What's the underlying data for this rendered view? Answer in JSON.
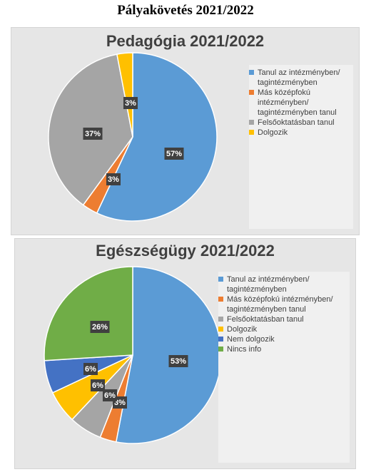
{
  "page_title": "Pályakövetés 2021/2022",
  "chart_data": [
    {
      "type": "pie",
      "title": "Pedagógia 2021/2022",
      "categories": [
        "Tanul az intézményben/ tagintézményben",
        "Más középfokú intézményben/ tagintézményben tanul",
        "Felsőoktatásban tanul",
        "Dolgozik"
      ],
      "values": [
        57,
        3,
        37,
        3
      ],
      "data_labels": [
        "57%",
        "3%",
        "37%",
        "3%"
      ],
      "colors": [
        "#5b9bd5",
        "#ed7d31",
        "#a5a5a5",
        "#ffc000"
      ],
      "legend_labels": [
        [
          "Tanul az intézményben/",
          "tagintézményben"
        ],
        [
          "Más középfokú",
          "intézményben/",
          "tagintézményben tanul"
        ],
        [
          "Felsőoktatásban tanul"
        ],
        [
          "Dolgozik"
        ]
      ],
      "legend_position": "right"
    },
    {
      "type": "pie",
      "title": "Egészségügy 2021/2022",
      "categories": [
        "Tanul az intézményben/ tagintézményben",
        "Más középfokú intézményben/ tagintézményben tanul",
        "Felsőoktatásban tanul",
        "Dolgozik",
        "Nem dolgozik",
        "Nincs info"
      ],
      "values": [
        53,
        3,
        6,
        6,
        6,
        26
      ],
      "data_labels": [
        "53%",
        "3%",
        "6%",
        "6%",
        "6%",
        "26%"
      ],
      "colors": [
        "#5b9bd5",
        "#ed7d31",
        "#a5a5a5",
        "#ffc000",
        "#4472c4",
        "#70ad47"
      ],
      "legend_labels": [
        [
          "Tanul az intézményben/",
          "tagintézményben"
        ],
        [
          "Más középfokú intézményben/",
          "tagintézményben tanul"
        ],
        [
          "Felsőoktatásban tanul"
        ],
        [
          "Dolgozik"
        ],
        [
          "Nem dolgozik"
        ],
        [
          "Nincs info"
        ]
      ],
      "legend_position": "right"
    }
  ]
}
